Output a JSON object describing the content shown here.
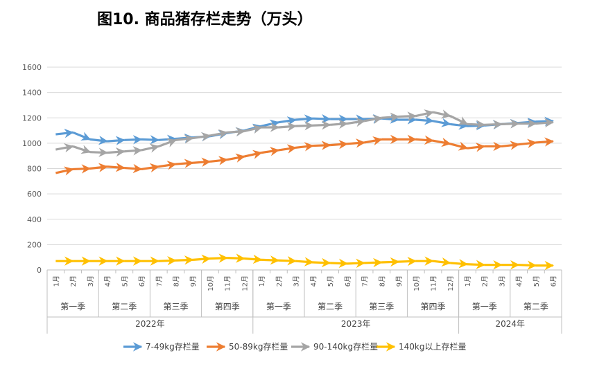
{
  "title": "图10. 商品猪存栏走势（万头）",
  "chart_data": {
    "type": "line",
    "ylim": [
      0,
      1600
    ],
    "yticks": [
      0,
      200,
      400,
      600,
      800,
      1000,
      1200,
      1400,
      1600
    ],
    "grid": true,
    "legend_position": "bottom",
    "categories": [
      "1月",
      "2月",
      "3月",
      "4月",
      "5月",
      "6月",
      "7月",
      "8月",
      "9月",
      "10月",
      "11月",
      "12月",
      "1月",
      "2月",
      "3月",
      "4月",
      "5月",
      "6月",
      "7月",
      "8月",
      "9月",
      "10月",
      "11月",
      "12月",
      "1月",
      "2月",
      "3月",
      "4月",
      "5月",
      "6月"
    ],
    "quarters": [
      {
        "label": "第一季",
        "months": 3
      },
      {
        "label": "第二季",
        "months": 3
      },
      {
        "label": "第三季",
        "months": 3
      },
      {
        "label": "第四季",
        "months": 3
      },
      {
        "label": "第一季",
        "months": 3
      },
      {
        "label": "第二季",
        "months": 3
      },
      {
        "label": "第三季",
        "months": 3
      },
      {
        "label": "第四季",
        "months": 3
      },
      {
        "label": "第一季",
        "months": 3
      },
      {
        "label": "第二季",
        "months": 3
      }
    ],
    "years": [
      {
        "label": "2022年",
        "months": 12
      },
      {
        "label": "2023年",
        "months": 12
      },
      {
        "label": "2024年",
        "months": 6
      }
    ],
    "series": [
      {
        "name": "7-49kg存栏量",
        "color": "#5B9BD5",
        "values": [
          1070,
          1085,
          1030,
          1015,
          1025,
          1030,
          1025,
          1035,
          1045,
          1055,
          1080,
          1100,
          1135,
          1165,
          1185,
          1195,
          1190,
          1190,
          1190,
          1195,
          1185,
          1185,
          1175,
          1150,
          1135,
          1140,
          1150,
          1160,
          1170,
          1175
        ]
      },
      {
        "name": "50-89kg存栏量",
        "color": "#ED7D31",
        "values": [
          765,
          795,
          800,
          815,
          805,
          795,
          815,
          835,
          845,
          855,
          870,
          895,
          925,
          945,
          965,
          980,
          985,
          995,
          1005,
          1030,
          1030,
          1030,
          1020,
          995,
          960,
          975,
          975,
          990,
          1005,
          1015
        ]
      },
      {
        "name": "90-140kg存栏量",
        "color": "#A5A5A5",
        "values": [
          950,
          975,
          930,
          925,
          935,
          945,
          975,
          1025,
          1040,
          1060,
          1085,
          1095,
          1125,
          1125,
          1135,
          1140,
          1145,
          1155,
          1175,
          1200,
          1210,
          1215,
          1245,
          1215,
          1150,
          1145,
          1150,
          1155,
          1155,
          1165
        ]
      },
      {
        "name": "140kg以上存栏量",
        "color": "#FFC000",
        "values": [
          70,
          70,
          70,
          70,
          70,
          70,
          70,
          75,
          80,
          90,
          95,
          90,
          80,
          75,
          70,
          60,
          55,
          50,
          55,
          60,
          65,
          70,
          70,
          55,
          45,
          40,
          40,
          40,
          35,
          35
        ]
      }
    ]
  }
}
